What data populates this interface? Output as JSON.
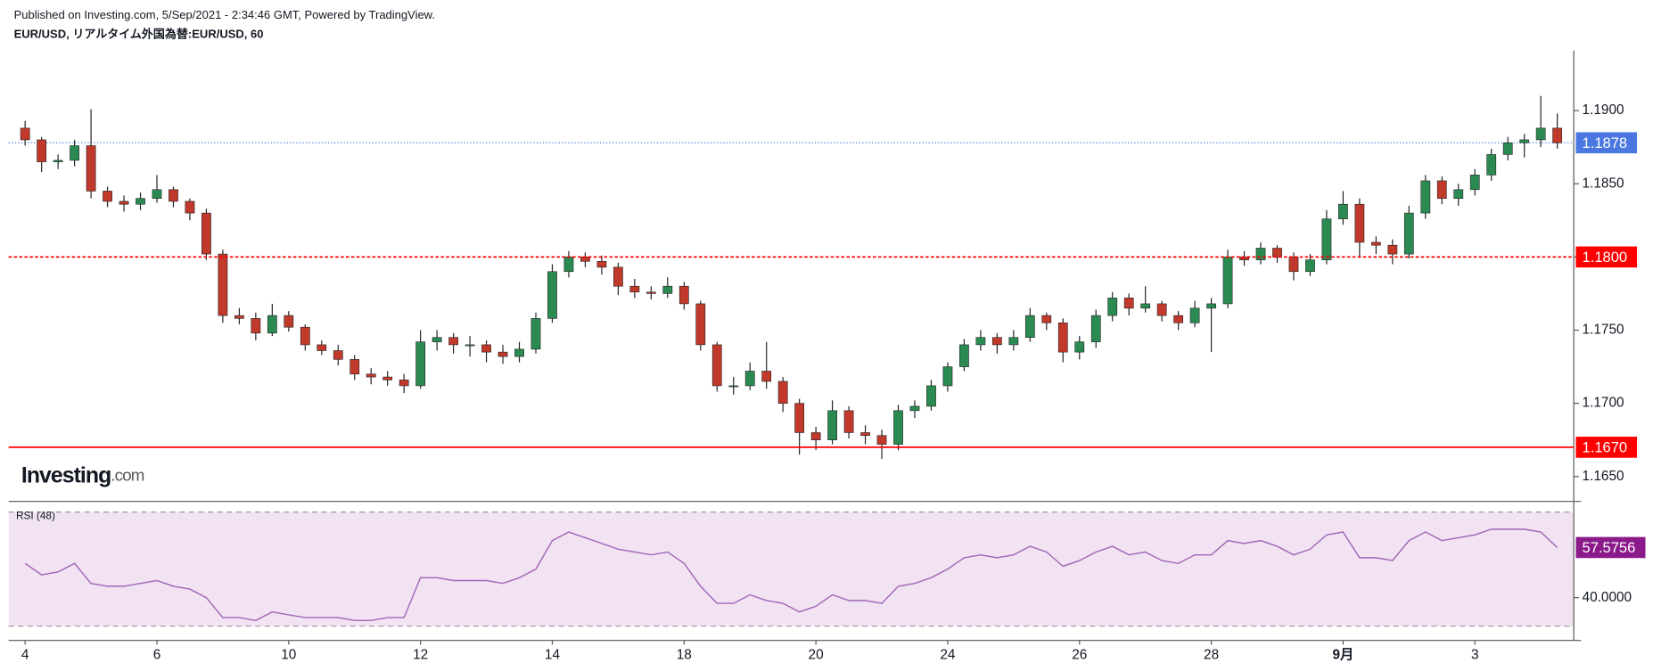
{
  "chart_data": {
    "type": "candlestick",
    "published": "Published on Investing.com, 5/Sep/2021 - 2:34:46 GMT, Powered by TradingView.",
    "title": "EUR/USD, リアルタイム外国為替:EUR/USD, 60",
    "logo_main": "Investing",
    "logo_suffix": ".com",
    "up_color": "#2a8a52",
    "down_color": "#c0392b",
    "wick_color": "#222222",
    "xlim": [
      -1,
      94
    ],
    "xticks": [
      {
        "value": 0,
        "label": "4"
      },
      {
        "value": 8,
        "label": "6"
      },
      {
        "value": 16,
        "label": "10"
      },
      {
        "value": 24,
        "label": "12"
      },
      {
        "value": 32,
        "label": "14"
      },
      {
        "value": 40,
        "label": "18"
      },
      {
        "value": 48,
        "label": "20"
      },
      {
        "value": 56,
        "label": "24"
      },
      {
        "value": 64,
        "label": "26"
      },
      {
        "value": 72,
        "label": "28"
      },
      {
        "value": 80,
        "label": "9月"
      },
      {
        "value": 88,
        "label": "3"
      }
    ],
    "ylim": [
      1.1633,
      1.1941
    ],
    "yticks": [
      {
        "value": 1.165,
        "label": "1.1650"
      },
      {
        "value": 1.17,
        "label": "1.1700"
      },
      {
        "value": 1.175,
        "label": "1.1750"
      },
      {
        "value": 1.18,
        "label": "1.1800"
      },
      {
        "value": 1.185,
        "label": "1.1850"
      },
      {
        "value": 1.19,
        "label": "1.1900"
      }
    ],
    "values": [
      [
        1.1888,
        1.1893,
        1.1876,
        1.188
      ],
      [
        1.188,
        1.1882,
        1.1858,
        1.1865
      ],
      [
        1.1865,
        1.187,
        1.186,
        1.1866
      ],
      [
        1.1866,
        1.188,
        1.1862,
        1.1876
      ],
      [
        1.1876,
        1.1901,
        1.184,
        1.1845
      ],
      [
        1.1845,
        1.1848,
        1.1834,
        1.1838
      ],
      [
        1.1838,
        1.1842,
        1.1831,
        1.1836
      ],
      [
        1.1836,
        1.1844,
        1.1832,
        1.184
      ],
      [
        1.184,
        1.1856,
        1.1837,
        1.1846
      ],
      [
        1.1846,
        1.1848,
        1.1834,
        1.1838
      ],
      [
        1.1838,
        1.184,
        1.1825,
        1.183
      ],
      [
        1.183,
        1.1833,
        1.1798,
        1.1802
      ],
      [
        1.1802,
        1.1805,
        1.1755,
        1.176
      ],
      [
        1.176,
        1.1765,
        1.1754,
        1.1758
      ],
      [
        1.1758,
        1.1762,
        1.1743,
        1.1748
      ],
      [
        1.1748,
        1.1768,
        1.1746,
        1.176
      ],
      [
        1.176,
        1.1763,
        1.1749,
        1.1752
      ],
      [
        1.1752,
        1.1754,
        1.1736,
        1.174
      ],
      [
        1.174,
        1.1743,
        1.1733,
        1.1736
      ],
      [
        1.1736,
        1.174,
        1.1726,
        1.173
      ],
      [
        1.173,
        1.1733,
        1.1716,
        1.172
      ],
      [
        1.172,
        1.1724,
        1.1713,
        1.1718
      ],
      [
        1.1718,
        1.1722,
        1.1712,
        1.1716
      ],
      [
        1.1716,
        1.172,
        1.1707,
        1.1712
      ],
      [
        1.1712,
        1.175,
        1.171,
        1.1742
      ],
      [
        1.1742,
        1.175,
        1.1736,
        1.1745
      ],
      [
        1.1745,
        1.1748,
        1.1734,
        1.174
      ],
      [
        1.174,
        1.1746,
        1.1732,
        1.174
      ],
      [
        1.174,
        1.1743,
        1.1728,
        1.1735
      ],
      [
        1.1735,
        1.174,
        1.1727,
        1.1732
      ],
      [
        1.1732,
        1.1742,
        1.1728,
        1.1737
      ],
      [
        1.1737,
        1.1762,
        1.1734,
        1.1758
      ],
      [
        1.1758,
        1.1795,
        1.1755,
        1.179
      ],
      [
        1.179,
        1.1804,
        1.1786,
        1.18
      ],
      [
        1.18,
        1.1803,
        1.1793,
        1.1797
      ],
      [
        1.1797,
        1.1801,
        1.1788,
        1.1793
      ],
      [
        1.1793,
        1.1796,
        1.1774,
        1.178
      ],
      [
        1.178,
        1.1785,
        1.1772,
        1.1776
      ],
      [
        1.1776,
        1.178,
        1.1771,
        1.1775
      ],
      [
        1.1775,
        1.1786,
        1.1772,
        1.178
      ],
      [
        1.178,
        1.1783,
        1.1764,
        1.1768
      ],
      [
        1.1768,
        1.177,
        1.1736,
        1.174
      ],
      [
        1.174,
        1.1742,
        1.1708,
        1.1712
      ],
      [
        1.1712,
        1.1718,
        1.1706,
        1.1712
      ],
      [
        1.1712,
        1.1728,
        1.1709,
        1.1722
      ],
      [
        1.1722,
        1.1742,
        1.171,
        1.1715
      ],
      [
        1.1715,
        1.1718,
        1.1694,
        1.17
      ],
      [
        1.17,
        1.1703,
        1.1665,
        1.168
      ],
      [
        1.168,
        1.1684,
        1.1668,
        1.1675
      ],
      [
        1.1675,
        1.1702,
        1.1672,
        1.1695
      ],
      [
        1.1695,
        1.1698,
        1.1676,
        1.168
      ],
      [
        1.168,
        1.1685,
        1.1672,
        1.1678
      ],
      [
        1.1678,
        1.1682,
        1.1662,
        1.1672
      ],
      [
        1.1672,
        1.1699,
        1.1668,
        1.1695
      ],
      [
        1.1695,
        1.1702,
        1.169,
        1.1698
      ],
      [
        1.1698,
        1.1716,
        1.1695,
        1.1712
      ],
      [
        1.1712,
        1.1728,
        1.1708,
        1.1725
      ],
      [
        1.1725,
        1.1744,
        1.1722,
        1.174
      ],
      [
        1.174,
        1.175,
        1.1736,
        1.1745
      ],
      [
        1.1745,
        1.1748,
        1.1734,
        1.174
      ],
      [
        1.174,
        1.175,
        1.1736,
        1.1745
      ],
      [
        1.1745,
        1.1765,
        1.1742,
        1.176
      ],
      [
        1.176,
        1.1762,
        1.175,
        1.1755
      ],
      [
        1.1755,
        1.1758,
        1.1728,
        1.1735
      ],
      [
        1.1735,
        1.1746,
        1.173,
        1.1742
      ],
      [
        1.1742,
        1.1764,
        1.1738,
        1.176
      ],
      [
        1.176,
        1.1776,
        1.1756,
        1.1772
      ],
      [
        1.1772,
        1.1775,
        1.176,
        1.1765
      ],
      [
        1.1765,
        1.178,
        1.1762,
        1.1768
      ],
      [
        1.1768,
        1.177,
        1.1756,
        1.176
      ],
      [
        1.176,
        1.1763,
        1.175,
        1.1755
      ],
      [
        1.1755,
        1.177,
        1.1752,
        1.1765
      ],
      [
        1.1765,
        1.1772,
        1.1735,
        1.1768
      ],
      [
        1.1768,
        1.1805,
        1.1765,
        1.18
      ],
      [
        1.18,
        1.1804,
        1.1794,
        1.1798
      ],
      [
        1.1798,
        1.181,
        1.1795,
        1.1806
      ],
      [
        1.1806,
        1.1808,
        1.1796,
        1.18
      ],
      [
        1.18,
        1.1803,
        1.1784,
        1.179
      ],
      [
        1.179,
        1.1802,
        1.1787,
        1.1798
      ],
      [
        1.1798,
        1.1832,
        1.1795,
        1.1826
      ],
      [
        1.1826,
        1.1845,
        1.1822,
        1.1836
      ],
      [
        1.1836,
        1.184,
        1.18,
        1.181
      ],
      [
        1.181,
        1.1814,
        1.1802,
        1.1808
      ],
      [
        1.1808,
        1.1812,
        1.1795,
        1.1802
      ],
      [
        1.1802,
        1.1835,
        1.1799,
        1.183
      ],
      [
        1.183,
        1.1856,
        1.1826,
        1.1852
      ],
      [
        1.1852,
        1.1855,
        1.1836,
        1.184
      ],
      [
        1.184,
        1.185,
        1.1835,
        1.1846
      ],
      [
        1.1846,
        1.186,
        1.1842,
        1.1856
      ],
      [
        1.1856,
        1.1874,
        1.1852,
        1.187
      ],
      [
        1.187,
        1.1882,
        1.1866,
        1.1878
      ],
      [
        1.1878,
        1.1884,
        1.1868,
        1.188
      ],
      [
        1.188,
        1.191,
        1.1875,
        1.1888
      ],
      [
        1.1888,
        1.1898,
        1.1874,
        1.1878
      ]
    ],
    "last_price": {
      "value": 1.1878,
      "label": "1.1878",
      "color": "#4a78e0"
    },
    "hlines": [
      {
        "value": 1.18,
        "label": "1.1800",
        "color": "#ff0000",
        "style": "dashed"
      },
      {
        "value": 1.167,
        "label": "1.1670",
        "color": "#ff0000",
        "style": "solid"
      }
    ],
    "rsi": {
      "label": "RSI (48)",
      "color": "#a066b8",
      "band_color": "#f1e3f1",
      "ylim": [
        25,
        73
      ],
      "levels": [
        30,
        70
      ],
      "yticks": [
        {
          "value": 40,
          "label": "40.0000"
        }
      ],
      "values": [
        52,
        48,
        49,
        52,
        45,
        44,
        44,
        45,
        46,
        44,
        43,
        40,
        33,
        33,
        32,
        35,
        34,
        33,
        33,
        33,
        32,
        32,
        33,
        33,
        47,
        47,
        46,
        46,
        46,
        45,
        47,
        50,
        60,
        63,
        61,
        59,
        57,
        56,
        55,
        56,
        52,
        44,
        38,
        38,
        41,
        39,
        38,
        35,
        37,
        41,
        39,
        39,
        38,
        44,
        45,
        47,
        50,
        54,
        55,
        54,
        55,
        58,
        56,
        51,
        53,
        56,
        58,
        55,
        56,
        53,
        52,
        55,
        55,
        60,
        59,
        60,
        58,
        55,
        57,
        62,
        63,
        54,
        54,
        53,
        60,
        63,
        60,
        61,
        62,
        64,
        64,
        64,
        63,
        57.5756
      ],
      "last": {
        "value": 57.5756,
        "label": "57.5756",
        "color": "#8b1a8b"
      }
    }
  }
}
